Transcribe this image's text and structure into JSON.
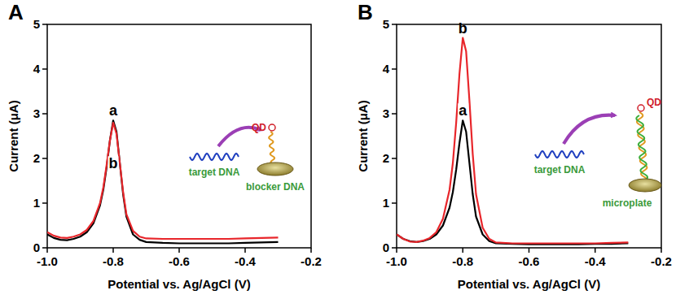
{
  "chart_data": [
    {
      "type": "line",
      "title": "A",
      "xlabel": "Potential vs. Ag/AgCl (V)",
      "ylabel": "Current (μA)",
      "x": [
        -1.0,
        -0.98,
        -0.96,
        -0.94,
        -0.92,
        -0.9,
        -0.88,
        -0.86,
        -0.84,
        -0.83,
        -0.82,
        -0.81,
        -0.8,
        -0.79,
        -0.78,
        -0.77,
        -0.76,
        -0.74,
        -0.72,
        -0.7,
        -0.65,
        -0.6,
        -0.55,
        -0.5,
        -0.45,
        -0.4,
        -0.35,
        -0.3
      ],
      "series": [
        {
          "name": "a",
          "color": "#000000",
          "values": [
            0.3,
            0.22,
            0.18,
            0.17,
            0.2,
            0.25,
            0.35,
            0.55,
            0.95,
            1.3,
            1.8,
            2.4,
            2.85,
            2.6,
            1.9,
            1.2,
            0.7,
            0.3,
            0.18,
            0.13,
            0.11,
            0.1,
            0.1,
            0.1,
            0.1,
            0.11,
            0.12,
            0.13
          ]
        },
        {
          "name": "b",
          "color": "#e8262b",
          "values": [
            0.35,
            0.27,
            0.23,
            0.22,
            0.25,
            0.3,
            0.4,
            0.6,
            1.0,
            1.35,
            1.85,
            2.4,
            2.8,
            2.55,
            1.9,
            1.25,
            0.75,
            0.38,
            0.25,
            0.21,
            0.2,
            0.2,
            0.2,
            0.2,
            0.2,
            0.21,
            0.22,
            0.23
          ]
        }
      ],
      "xlim": [
        -1.0,
        -0.2
      ],
      "xticks": [
        {
          "value": -1.0,
          "label": "-1.0"
        },
        -0.8,
        -0.6,
        -0.4,
        -0.2
      ],
      "ylim": [
        0,
        5
      ],
      "yticks": [
        0,
        1,
        2,
        3,
        4,
        5
      ],
      "inset": {
        "target": "target DNA",
        "probe": "QD",
        "surface": "blocker DNA"
      }
    },
    {
      "type": "line",
      "title": "B",
      "xlabel": "Potential vs. Ag/AgCl (V)",
      "ylabel": "Current (μA)",
      "x": [
        -1.0,
        -0.98,
        -0.96,
        -0.94,
        -0.92,
        -0.9,
        -0.88,
        -0.86,
        -0.84,
        -0.83,
        -0.82,
        -0.81,
        -0.8,
        -0.79,
        -0.78,
        -0.77,
        -0.76,
        -0.74,
        -0.72,
        -0.7,
        -0.65,
        -0.6,
        -0.55,
        -0.5,
        -0.45,
        -0.4,
        -0.35,
        -0.3
      ],
      "series": [
        {
          "name": "a",
          "color": "#000000",
          "values": [
            0.3,
            0.2,
            0.15,
            0.13,
            0.15,
            0.2,
            0.3,
            0.5,
            0.9,
            1.25,
            1.75,
            2.35,
            2.85,
            2.6,
            1.9,
            1.2,
            0.7,
            0.3,
            0.15,
            0.1,
            0.09,
            0.08,
            0.08,
            0.08,
            0.08,
            0.09,
            0.09,
            0.1
          ]
        },
        {
          "name": "b",
          "color": "#e8262b",
          "values": [
            0.3,
            0.2,
            0.14,
            0.13,
            0.16,
            0.22,
            0.35,
            0.65,
            1.3,
            1.9,
            2.8,
            3.9,
            4.7,
            4.4,
            3.3,
            2.1,
            1.2,
            0.45,
            0.2,
            0.12,
            0.1,
            0.1,
            0.1,
            0.1,
            0.1,
            0.1,
            0.11,
            0.12
          ]
        }
      ],
      "xlim": [
        -1.0,
        -0.2
      ],
      "xticks": [
        {
          "value": -1.0,
          "label": "-1.0"
        },
        -0.8,
        -0.6,
        -0.4,
        -0.2
      ],
      "ylim": [
        0,
        5
      ],
      "yticks": [
        0,
        1,
        2,
        3,
        4,
        5
      ],
      "inset": {
        "target": "target DNA",
        "probe": "QD",
        "surface": "microplate"
      }
    }
  ]
}
